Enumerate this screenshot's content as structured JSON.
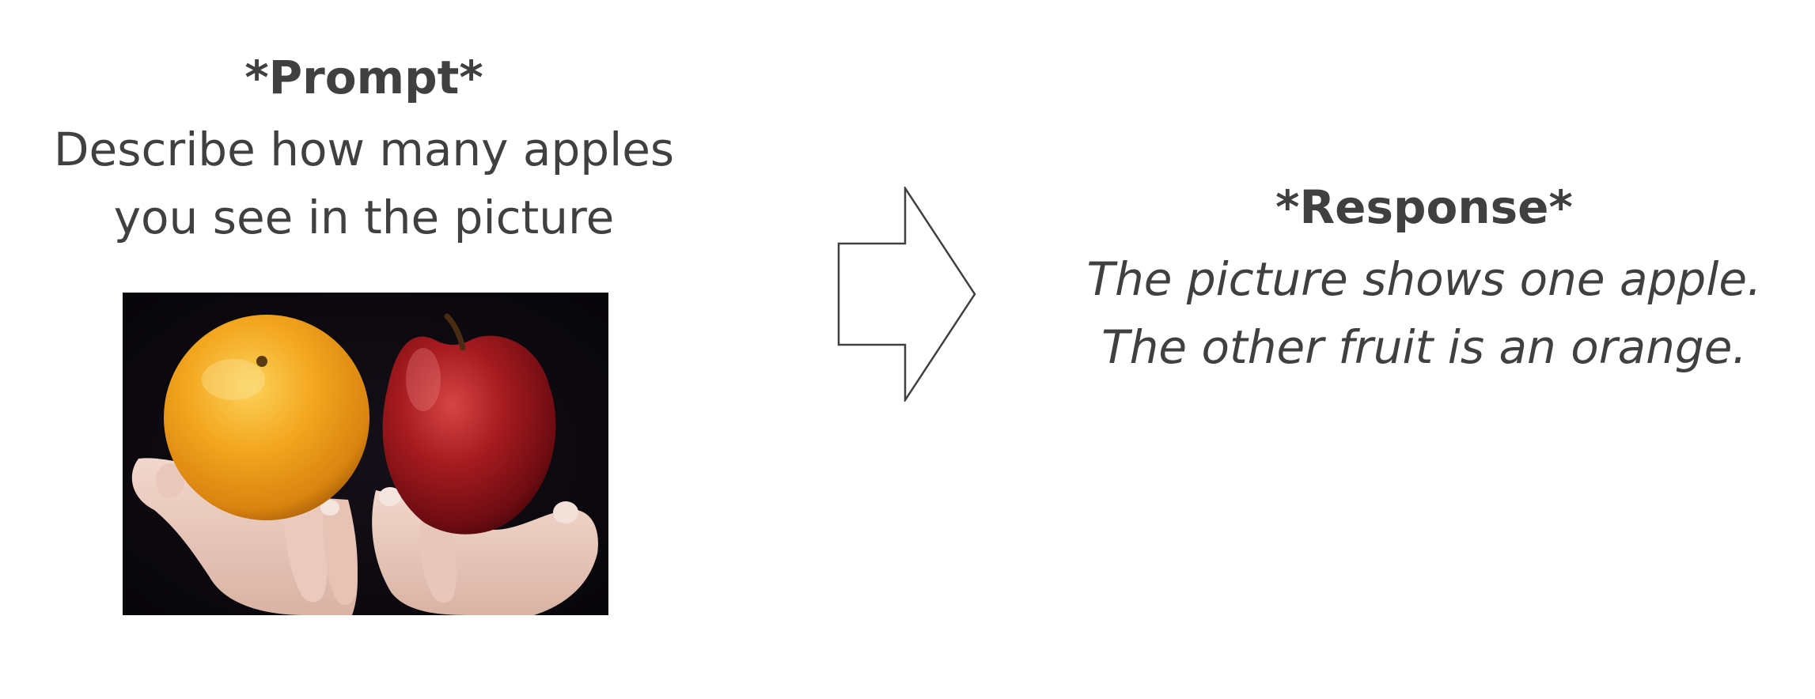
{
  "prompt": {
    "title": "*Prompt*",
    "text": "Describe how many apples you see in the picture"
  },
  "photo": {
    "subject": "hands holding an orange and a red apple",
    "icon": "fruit-photo"
  },
  "arrow": {
    "icon": "right-arrow-icon"
  },
  "response": {
    "title": "*Response*",
    "line1": "The picture shows one apple.",
    "line2": "The other fruit is an orange."
  },
  "colors": {
    "text": "#404040",
    "background": "#ffffff"
  }
}
